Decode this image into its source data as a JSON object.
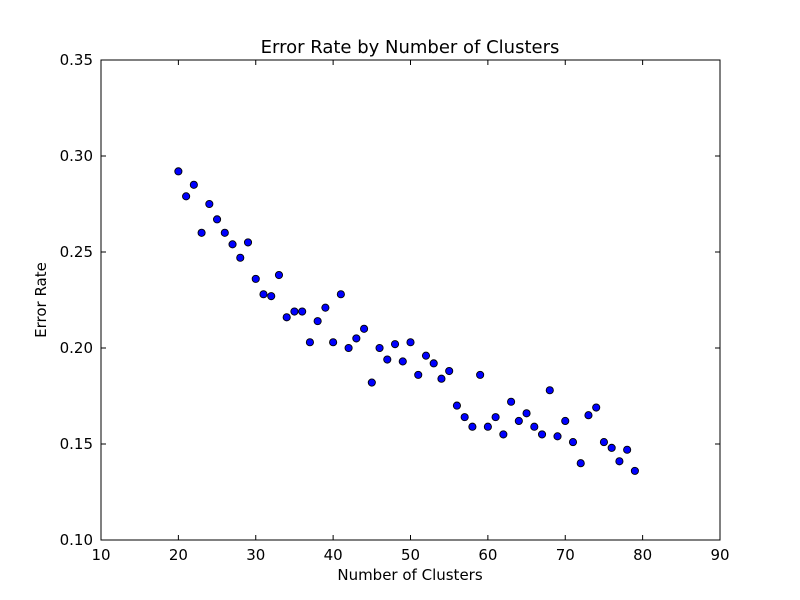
{
  "chart_data": {
    "type": "scatter",
    "title": "Error Rate by Number of Clusters",
    "xlabel": "Number of Clusters",
    "ylabel": "Error Rate",
    "xlim": [
      10,
      90
    ],
    "ylim": [
      0.1,
      0.35
    ],
    "xticks": [
      "10",
      "20",
      "30",
      "40",
      "50",
      "60",
      "70",
      "80",
      "90"
    ],
    "yticks": [
      "0.10",
      "0.15",
      "0.20",
      "0.25",
      "0.30",
      "0.35"
    ],
    "grid": false,
    "marker_color": "#0000ff",
    "marker_edge_color": "#000000",
    "x": [
      20,
      21,
      22,
      23,
      24,
      25,
      26,
      27,
      28,
      29,
      30,
      31,
      32,
      33,
      34,
      35,
      36,
      37,
      38,
      39,
      40,
      41,
      42,
      43,
      44,
      45,
      46,
      47,
      48,
      49,
      50,
      51,
      52,
      53,
      54,
      55,
      56,
      57,
      58,
      59,
      60,
      61,
      62,
      63,
      64,
      65,
      66,
      67,
      68,
      69,
      70,
      71,
      72,
      73,
      74,
      75,
      76,
      77,
      78,
      79
    ],
    "y": [
      0.292,
      0.279,
      0.285,
      0.26,
      0.275,
      0.267,
      0.26,
      0.254,
      0.247,
      0.255,
      0.236,
      0.228,
      0.227,
      0.238,
      0.216,
      0.219,
      0.219,
      0.203,
      0.214,
      0.221,
      0.203,
      0.228,
      0.2,
      0.205,
      0.21,
      0.182,
      0.2,
      0.194,
      0.202,
      0.193,
      0.203,
      0.186,
      0.196,
      0.192,
      0.184,
      0.188,
      0.17,
      0.164,
      0.159,
      0.186,
      0.159,
      0.164,
      0.155,
      0.172,
      0.162,
      0.166,
      0.159,
      0.155,
      0.178,
      0.154,
      0.162,
      0.151,
      0.14,
      0.165,
      0.169,
      0.151,
      0.148,
      0.141,
      0.147,
      0.136
    ]
  }
}
